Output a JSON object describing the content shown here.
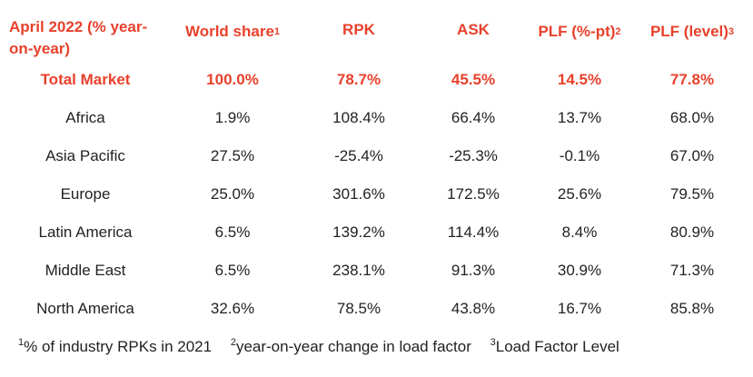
{
  "header": {
    "title": "April 2022 (% year-on-year)",
    "columns": [
      {
        "label": "World share",
        "sup": "1"
      },
      {
        "label": "RPK",
        "sup": ""
      },
      {
        "label": "ASK",
        "sup": ""
      },
      {
        "label": "PLF (%-pt)",
        "sup": "2"
      },
      {
        "label": "PLF (level)",
        "sup": "3"
      }
    ]
  },
  "rows": [
    {
      "region": "Total Market",
      "world_share": "100.0%",
      "rpk": "78.7%",
      "ask": "45.5%",
      "plf_pt": "14.5%",
      "plf_level": "77.8%"
    },
    {
      "region": "Africa",
      "world_share": "1.9%",
      "rpk": "108.4%",
      "ask": "66.4%",
      "plf_pt": "13.7%",
      "plf_level": "68.0%"
    },
    {
      "region": "Asia Pacific",
      "world_share": "27.5%",
      "rpk": "-25.4%",
      "ask": "-25.3%",
      "plf_pt": "-0.1%",
      "plf_level": "67.0%"
    },
    {
      "region": "Europe",
      "world_share": "25.0%",
      "rpk": "301.6%",
      "ask": "172.5%",
      "plf_pt": "25.6%",
      "plf_level": "79.5%"
    },
    {
      "region": "Latin America",
      "world_share": "6.5%",
      "rpk": "139.2%",
      "ask": "114.4%",
      "plf_pt": "8.4%",
      "plf_level": "80.9%"
    },
    {
      "region": "Middle East",
      "world_share": "6.5%",
      "rpk": "238.1%",
      "ask": "91.3%",
      "plf_pt": "30.9%",
      "plf_level": "71.3%"
    },
    {
      "region": "North America",
      "world_share": "32.6%",
      "rpk": "78.5%",
      "ask": "43.8%",
      "plf_pt": "16.7%",
      "plf_level": "85.8%"
    }
  ],
  "footnotes": [
    {
      "sup": "1",
      "text": "% of industry RPKs in 2021"
    },
    {
      "sup": "2",
      "text": "year-on-year change in load factor"
    },
    {
      "sup": "3",
      "text": "Load Factor Level"
    }
  ],
  "colors": {
    "accent": "#e8412c",
    "text": "#222222"
  }
}
